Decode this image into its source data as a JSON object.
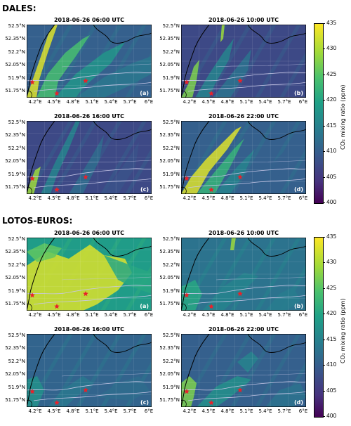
{
  "sections": [
    {
      "title": "DALES:",
      "panels": [
        {
          "title": "2018-06-26 06:00 UTC",
          "letter": "(a)",
          "field": "dales_06"
        },
        {
          "title": "2018-06-26 10:00 UTC",
          "letter": "(b)",
          "field": "dales_10"
        },
        {
          "title": "2018-06-26 16:00 UTC",
          "letter": "(c)",
          "field": "dales_16"
        },
        {
          "title": "2018-06-26 22:00 UTC",
          "letter": "(d)",
          "field": "dales_22"
        }
      ]
    },
    {
      "title": "LOTOS-EUROS:",
      "panels": [
        {
          "title": "2018-06-26 06:00 UTC",
          "letter": "(a)",
          "field": "le_06"
        },
        {
          "title": "2018-06-26 10:00 UTC",
          "letter": "(b)",
          "field": "le_10"
        },
        {
          "title": "2018-06-26 16:00 UTC",
          "letter": "(c)",
          "field": "le_16"
        },
        {
          "title": "2018-06-26 22:00 UTC",
          "letter": "(d)",
          "field": "le_22"
        }
      ]
    }
  ],
  "axes": {
    "lat_ticks": [
      "52.5°N",
      "52.35°N",
      "52.2°N",
      "52.05°N",
      "51.9°N",
      "51.75°N"
    ],
    "lon_ticks": [
      "4.2°E",
      "4.5°E",
      "4.8°E",
      "5.1°E",
      "5.4°E",
      "5.7°E",
      "6°E"
    ]
  },
  "colorbar": {
    "label": "CO₂ mixing ratio (ppm)",
    "min": 400,
    "max": 435,
    "ticks": [
      "400",
      "405",
      "410",
      "415",
      "420",
      "425",
      "430",
      "435"
    ],
    "colormap": "viridis"
  },
  "markers": {
    "color": "#e8212b",
    "symbol": "star",
    "count_per_panel": 3
  },
  "colors": {
    "coastline": "#000000",
    "rivers": "#c8c8e8"
  }
}
